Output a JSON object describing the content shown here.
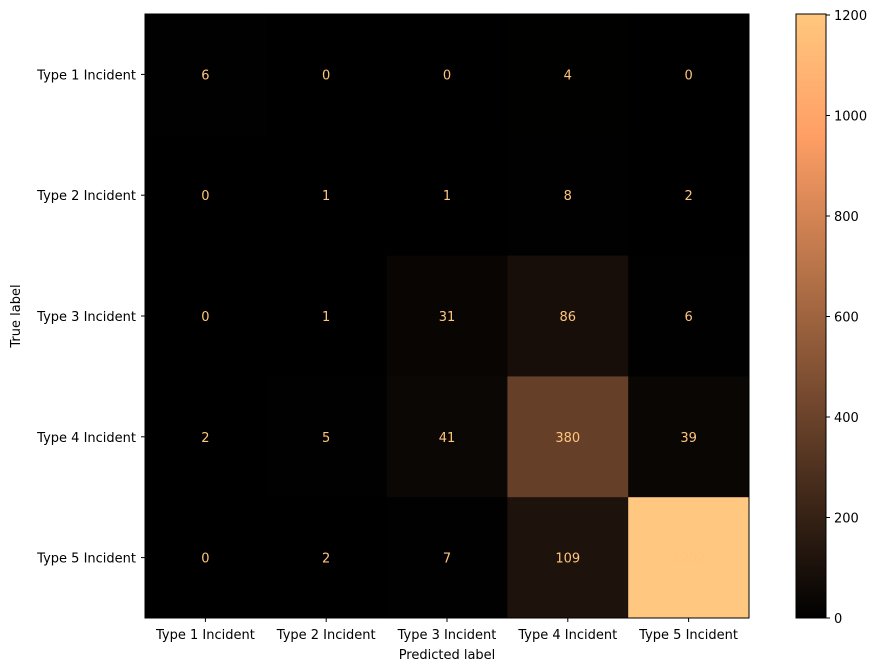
{
  "chart_data": {
    "type": "heatmap",
    "title": "",
    "xlabel": "Predicted label",
    "ylabel": "True label",
    "x_categories": [
      "Type 1 Incident",
      "Type 2 Incident",
      "Type 3 Incident",
      "Type 4 Incident",
      "Type 5 Incident"
    ],
    "y_categories": [
      "Type 1 Incident",
      "Type 2 Incident",
      "Type 3 Incident",
      "Type 4 Incident",
      "Type 5 Incident"
    ],
    "values": [
      [
        6,
        0,
        0,
        4,
        0
      ],
      [
        0,
        1,
        1,
        8,
        2
      ],
      [
        0,
        1,
        31,
        86,
        6
      ],
      [
        2,
        5,
        41,
        380,
        39
      ],
      [
        0,
        2,
        7,
        109,
        1202
      ]
    ],
    "colormap": "copper",
    "value_text_color": "#ffc57d",
    "colorbar": {
      "range": [
        0,
        1202
      ],
      "ticks": [
        0,
        200,
        400,
        600,
        800,
        1000,
        1200
      ]
    }
  }
}
